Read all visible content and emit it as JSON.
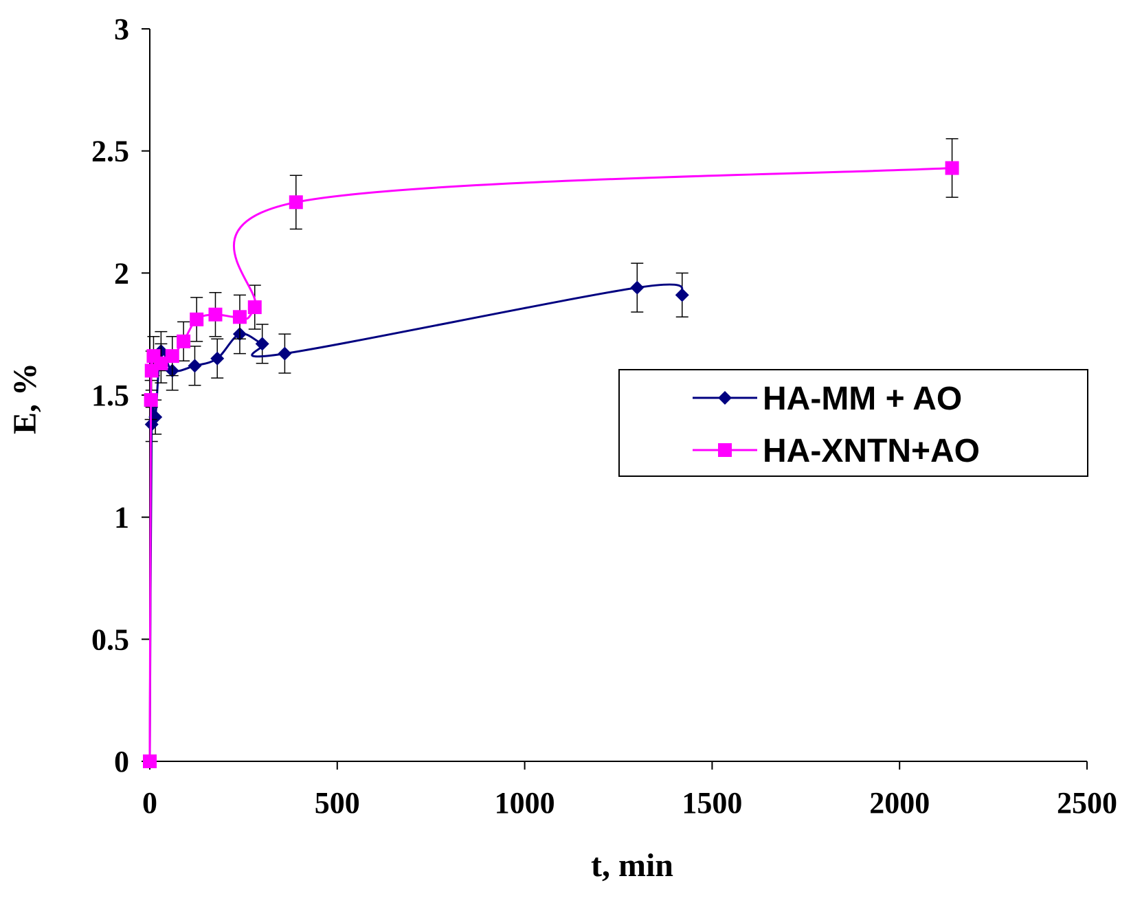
{
  "chart_data": {
    "type": "line",
    "title": "",
    "xlabel": "t, min",
    "ylabel": "E, %",
    "xlim": [
      0,
      2500
    ],
    "ylim": [
      0,
      3
    ],
    "xticks": [
      0,
      500,
      1000,
      1500,
      2000,
      2500
    ],
    "yticks": [
      0,
      0.5,
      1,
      1.5,
      2,
      2.5,
      3
    ],
    "xtick_labels": [
      "0",
      "500",
      "1000",
      "1500",
      "2000",
      "2500"
    ],
    "ytick_labels": [
      "0",
      "0.5",
      "1",
      "1.5",
      "2",
      "2.5",
      "3"
    ],
    "grid": false,
    "legend_position": "right",
    "series": [
      {
        "name": "HA-MM + AO",
        "color": "#000080",
        "marker": "diamond",
        "x": [
          0,
          5,
          15,
          30,
          60,
          120,
          180,
          240,
          300,
          360,
          1300,
          1420
        ],
        "y": [
          0,
          1.38,
          1.41,
          1.68,
          1.6,
          1.62,
          1.65,
          1.75,
          1.71,
          1.67,
          1.94,
          1.91
        ],
        "error": [
          0,
          0.07,
          0.07,
          0.08,
          0.08,
          0.08,
          0.08,
          0.08,
          0.08,
          0.08,
          0.1,
          0.09
        ]
      },
      {
        "name": "HA-XNTN+AO",
        "color": "#ff00ff",
        "marker": "square",
        "x": [
          0,
          3,
          5,
          10,
          30,
          60,
          90,
          125,
          175,
          240,
          280,
          390,
          2140
        ],
        "y": [
          0,
          1.48,
          1.6,
          1.66,
          1.63,
          1.66,
          1.72,
          1.81,
          1.83,
          1.82,
          1.86,
          2.29,
          2.43
        ],
        "error": [
          0,
          0.08,
          0.08,
          0.08,
          0.08,
          0.08,
          0.08,
          0.09,
          0.09,
          0.09,
          0.09,
          0.11,
          0.12
        ]
      }
    ]
  }
}
